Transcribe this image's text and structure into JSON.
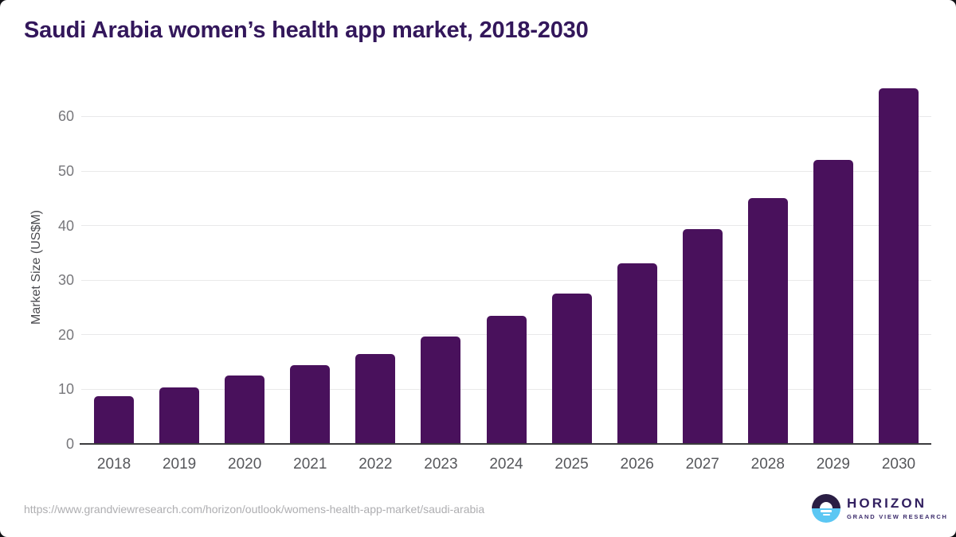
{
  "title": "Saudi Arabia women’s health app market, 2018-2030",
  "footer": {
    "source_url": "https://www.grandviewresearch.com/horizon/outlook/womens-health-app-market/saudi-arabia"
  },
  "logo": {
    "wordmark": "HORIZON",
    "subtitle": "GRAND VIEW RESEARCH",
    "circle_top_color": "#2a1e44",
    "circle_bottom_color": "#5bc7f3"
  },
  "colors": {
    "bar": "#49115c",
    "title_text": "#33175b",
    "gridline": "#e9e9ea",
    "axis_line": "#3b3b3d",
    "y_tick_text": "#77777b",
    "x_tick_text": "#56575b"
  },
  "chart_data": {
    "type": "bar",
    "title": "Saudi Arabia women’s health app market, 2018-2030",
    "categories": [
      "2018",
      "2019",
      "2020",
      "2021",
      "2022",
      "2023",
      "2024",
      "2025",
      "2026",
      "2027",
      "2028",
      "2029",
      "2030"
    ],
    "values": [
      8.7,
      10.4,
      12.6,
      14.4,
      16.5,
      19.7,
      23.4,
      27.6,
      33.1,
      39.3,
      45.1,
      52.0,
      65.1
    ],
    "xlabel": "",
    "ylabel": "Market Size (US$M)",
    "yticks": [
      0,
      10,
      20,
      30,
      40,
      50,
      60
    ],
    "ylim": [
      0,
      68
    ],
    "grid": true,
    "legend": "none",
    "bar_color": "#49115c"
  }
}
